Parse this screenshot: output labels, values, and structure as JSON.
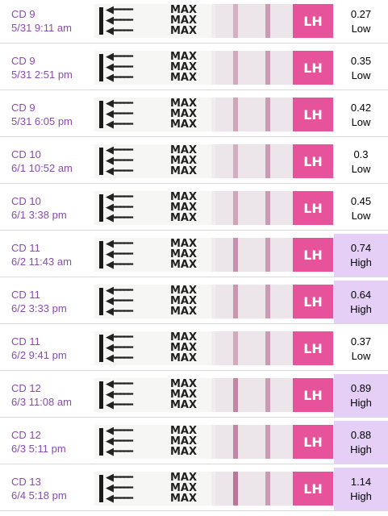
{
  "strip": {
    "arrows": "◀━━ ◀━━ ◀━━",
    "max": "MAX\nMAX\nMAX",
    "pad_text": "LH"
  },
  "colors": {
    "date_text": "#8a4bb0",
    "high_bg": "#e5cff7",
    "pad": "#e7539a",
    "line": "#b05b86"
  },
  "entries": [
    {
      "cycle_day": "CD 9",
      "datetime": "5/31 9:11 am",
      "value": "0.27",
      "level": "Low"
    },
    {
      "cycle_day": "CD 9",
      "datetime": "5/31 2:51 pm",
      "value": "0.35",
      "level": "Low"
    },
    {
      "cycle_day": "CD 9",
      "datetime": "5/31 6:05 pm",
      "value": "0.42",
      "level": "Low"
    },
    {
      "cycle_day": "CD 10",
      "datetime": "6/1 10:52 am",
      "value": "0.3",
      "level": "Low"
    },
    {
      "cycle_day": "CD 10",
      "datetime": "6/1 3:38 pm",
      "value": "0.45",
      "level": "Low"
    },
    {
      "cycle_day": "CD 11",
      "datetime": "6/2 11:43 am",
      "value": "0.74",
      "level": "High"
    },
    {
      "cycle_day": "CD 11",
      "datetime": "6/2 3:33 pm",
      "value": "0.64",
      "level": "High"
    },
    {
      "cycle_day": "CD 11",
      "datetime": "6/2 9:41 pm",
      "value": "0.37",
      "level": "Low"
    },
    {
      "cycle_day": "CD 12",
      "datetime": "6/3 11:08 am",
      "value": "0.89",
      "level": "High"
    },
    {
      "cycle_day": "CD 12",
      "datetime": "6/3 5:11 pm",
      "value": "0.88",
      "level": "High"
    },
    {
      "cycle_day": "CD 13",
      "datetime": "6/4 5:18 pm",
      "value": "1.14",
      "level": "High"
    }
  ]
}
